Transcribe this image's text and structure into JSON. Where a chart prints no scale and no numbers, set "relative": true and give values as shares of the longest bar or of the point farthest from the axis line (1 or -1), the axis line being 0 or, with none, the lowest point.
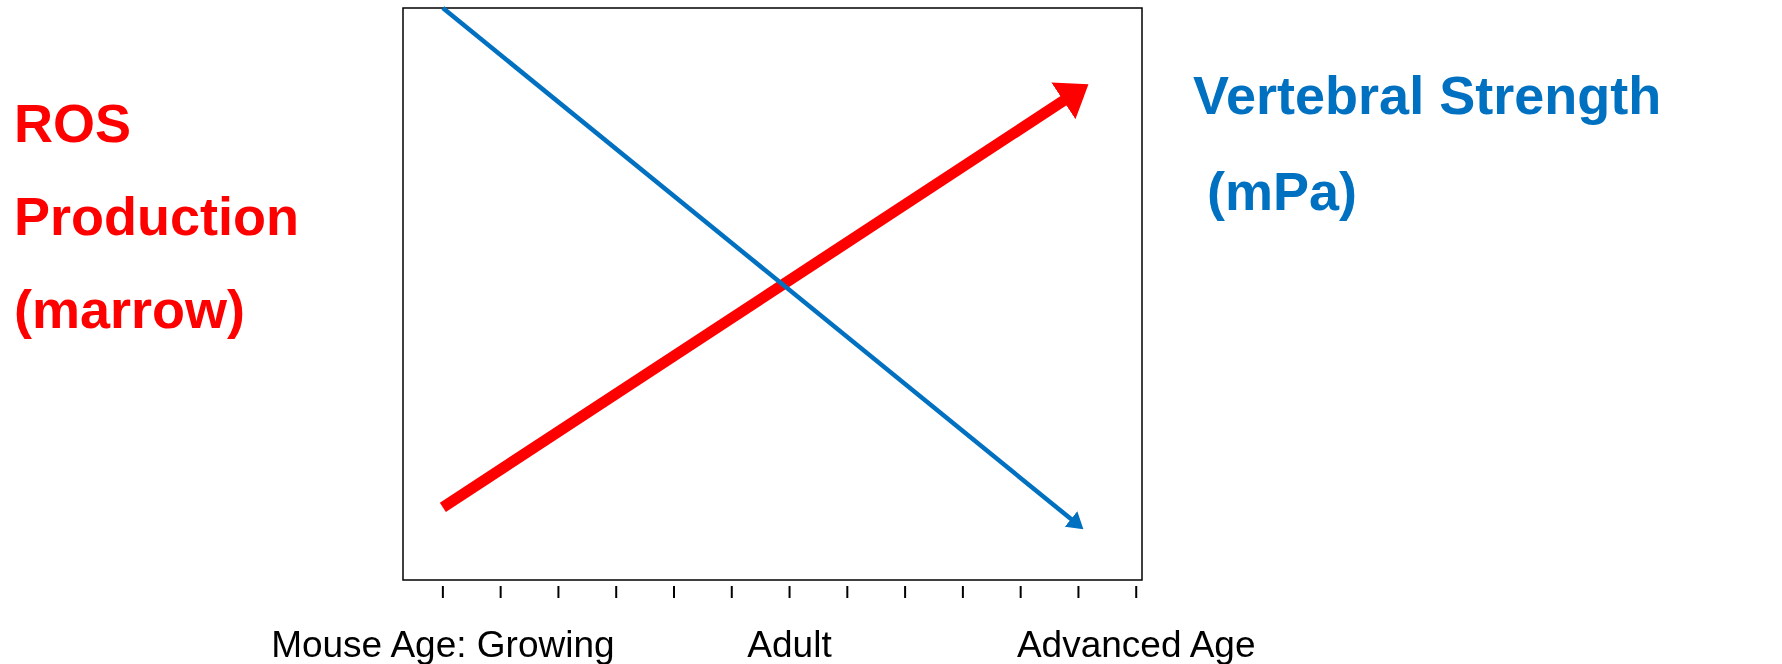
{
  "chart_data": {
    "type": "line",
    "relative": true,
    "categories": [
      "Mouse Age: Growing",
      null,
      null,
      null,
      null,
      null,
      "Adult",
      null,
      null,
      null,
      null,
      null,
      "Advanced Age"
    ],
    "series": [
      {
        "name": "ROS Production (marrow)",
        "color": "#ff0000",
        "values": [
          0.127,
          null,
          null,
          null,
          null,
          null,
          null,
          null,
          null,
          null,
          null,
          0.855,
          null
        ]
      },
      {
        "name": "Vertebral Strength (mPa)",
        "color": "#0070c0",
        "values": [
          1,
          null,
          null,
          null,
          null,
          null,
          null,
          null,
          null,
          null,
          null,
          0.096,
          null
        ]
      }
    ]
  }
}
